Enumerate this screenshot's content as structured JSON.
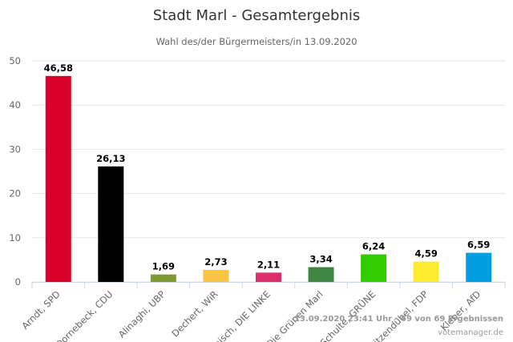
{
  "chart_data": {
    "type": "bar",
    "title": "Stadt Marl - Gesamtergebnis",
    "subtitle": "Wahl des/der Bürgermeisters/in 13.09.2020",
    "categories": [
      "Arndt, SPD",
      "Dornebeck, CDU",
      "Alinaghi, UBP",
      "Dechert, WiR",
      "Tomisch, DIE LINKE",
      "Die Grünen Marl",
      "Schulte, GRÜNE",
      "Pitzendübel, FDP",
      "Kleber, AfD"
    ],
    "values": [
      46.58,
      26.13,
      1.69,
      2.73,
      2.11,
      3.34,
      6.24,
      4.59,
      6.59
    ],
    "value_labels": [
      "46,58",
      "26,13",
      "1,69",
      "2,73",
      "2,11",
      "3,34",
      "6,24",
      "4,59",
      "6,59"
    ],
    "colors": [
      "#d9002a",
      "#000000",
      "#7f9a35",
      "#fdc443",
      "#dd2d6a",
      "#3d8740",
      "#33cc00",
      "#fdea2f",
      "#009ee0"
    ],
    "ylim": [
      0,
      50
    ],
    "yticks": [
      0,
      10,
      20,
      30,
      40,
      50
    ],
    "grid": true,
    "legend": "none"
  },
  "credits": {
    "line1": "13.09.2020 23:41 Uhr · 69 von 69 Ergebnissen",
    "line2": "votemanager.de"
  }
}
